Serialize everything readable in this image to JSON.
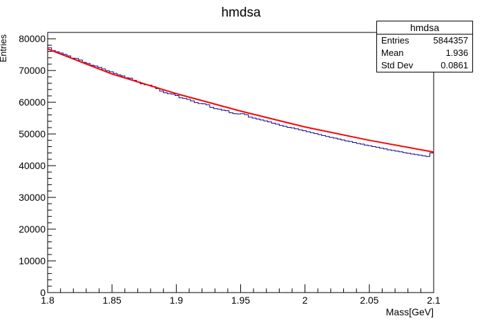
{
  "chart_data": {
    "type": "line",
    "title": "hmdsa",
    "xlabel": "Mass[GeV]",
    "ylabel": "Entries",
    "xlim": [
      1.8,
      2.1
    ],
    "ylim": [
      0,
      82000
    ],
    "x_ticks": [
      "1.8",
      "1.85",
      "1.9",
      "1.95",
      "2",
      "2.05",
      "2.1"
    ],
    "y_ticks": [
      "0",
      "10000",
      "20000",
      "30000",
      "40000",
      "50000",
      "60000",
      "70000",
      "80000"
    ],
    "series": [
      {
        "role": "histogram",
        "color": "#00008b",
        "bins": 100,
        "values": [
          77200,
          76300,
          75900,
          75500,
          75100,
          74600,
          73900,
          73800,
          73300,
          72600,
          72200,
          71700,
          71400,
          71000,
          70500,
          69900,
          69600,
          69100,
          68600,
          68300,
          67700,
          67600,
          66900,
          66400,
          65800,
          65500,
          65400,
          64900,
          64300,
          63500,
          63000,
          62700,
          62600,
          62100,
          61400,
          61200,
          60900,
          60400,
          59900,
          59600,
          59500,
          59200,
          58400,
          58000,
          57800,
          57500,
          57300,
          56700,
          56400,
          56300,
          56400,
          56100,
          55300,
          55000,
          54700,
          54400,
          54100,
          53800,
          53400,
          53100,
          52700,
          52400,
          52100,
          51900,
          51600,
          51300,
          51000,
          50700,
          50400,
          50100,
          49800,
          49500,
          49200,
          48900,
          48700,
          48400,
          48100,
          47800,
          47600,
          47300,
          47000,
          46800,
          46500,
          46300,
          46000,
          45800,
          45500,
          45300,
          45000,
          44800,
          44600,
          44400,
          44100,
          43900,
          43700,
          43500,
          43300,
          43100,
          42900,
          44000
        ]
      },
      {
        "role": "fit",
        "color": "#ff0000",
        "x": [
          1.8,
          1.85,
          1.9,
          1.95,
          2.0,
          2.05,
          2.1
        ],
        "values": [
          76800,
          68900,
          62700,
          57200,
          52200,
          48000,
          44300
        ]
      }
    ],
    "stats": {
      "title": "hmdsa",
      "rows": [
        {
          "label": "Entries",
          "value": "5844357"
        },
        {
          "label": "Mean",
          "value": "1.936"
        },
        {
          "label": "Std Dev",
          "value": "0.0861"
        }
      ]
    }
  }
}
